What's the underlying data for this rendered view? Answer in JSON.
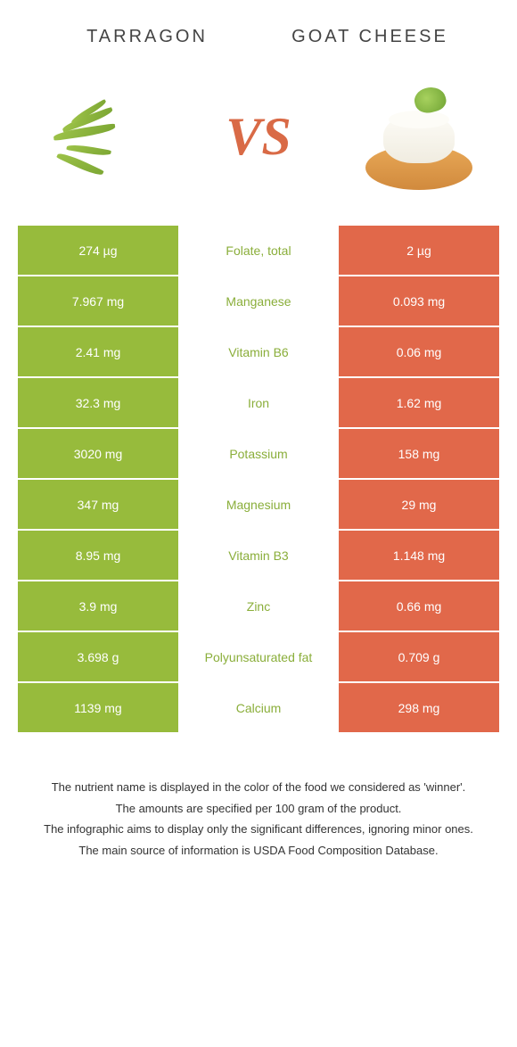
{
  "header": {
    "left_title": "TARRAGON",
    "right_title": "GOAT CHEESE",
    "vs_label": "VS"
  },
  "colors": {
    "left_bg": "#97bb3c",
    "right_bg": "#e1684a",
    "mid_text": "#8aae3a",
    "vs": "#d96a46"
  },
  "table": {
    "type": "comparison-table",
    "rows": [
      {
        "left": "274 µg",
        "mid": "Folate, total",
        "right": "2 µg"
      },
      {
        "left": "7.967 mg",
        "mid": "Manganese",
        "right": "0.093 mg"
      },
      {
        "left": "2.41 mg",
        "mid": "Vitamin B6",
        "right": "0.06 mg"
      },
      {
        "left": "32.3 mg",
        "mid": "Iron",
        "right": "1.62 mg"
      },
      {
        "left": "3020 mg",
        "mid": "Potassium",
        "right": "158 mg"
      },
      {
        "left": "347 mg",
        "mid": "Magnesium",
        "right": "29 mg"
      },
      {
        "left": "8.95 mg",
        "mid": "Vitamin B3",
        "right": "1.148 mg"
      },
      {
        "left": "3.9 mg",
        "mid": "Zinc",
        "right": "0.66 mg"
      },
      {
        "left": "3.698 g",
        "mid": "Polyunsaturated fat",
        "right": "0.709 g"
      },
      {
        "left": "1139 mg",
        "mid": "Calcium",
        "right": "298 mg"
      }
    ]
  },
  "footnotes": [
    "The nutrient name is displayed in the color of the food we considered as 'winner'.",
    "The amounts are specified per 100 gram of the product.",
    "The infographic aims to display only the significant differences, ignoring minor ones.",
    "The main source of information is USDA Food Composition Database."
  ]
}
